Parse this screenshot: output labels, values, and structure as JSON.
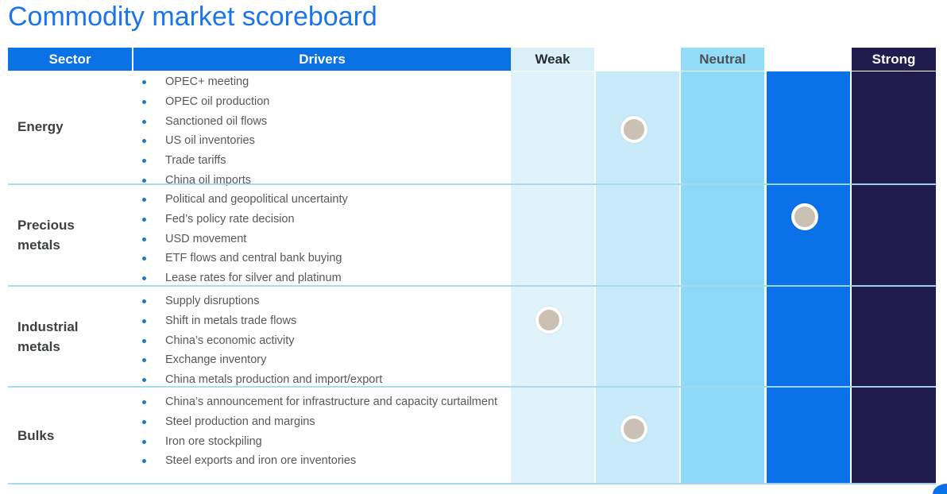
{
  "page": {
    "title": "Commodity market scoreboard"
  },
  "table": {
    "headers": {
      "sector": "Sector",
      "drivers": "Drivers"
    },
    "scale_labels": [
      "Weak",
      "Neutral",
      "Strong"
    ],
    "scale_levels": 5,
    "rows": [
      {
        "sector": "Energy",
        "drivers": [
          "OPEC+ meeting",
          "OPEC oil production",
          "Sanctioned oil flows",
          "US oil inventories",
          "Trade tariffs",
          "China oil imports"
        ],
        "rating": 2
      },
      {
        "sector": "Precious metals",
        "drivers": [
          "Political and geopolitical uncertainty",
          "Fed’s policy rate decision",
          "USD movement",
          "ETF flows and central bank buying",
          "Lease rates for silver and platinum"
        ],
        "rating": 4
      },
      {
        "sector": "Industrial metals",
        "drivers": [
          "Supply disruptions",
          "Shift in metals trade flows",
          "China’s economic activity",
          "Exchange inventory",
          "China metals production and import/export"
        ],
        "rating": 1
      },
      {
        "sector": "Bulks",
        "drivers": [
          "China’s announcement for infrastructure and capacity curtailment",
          "Steel production and margins",
          "Iron ore stockpiling",
          "Steel exports and iron ore inventories"
        ],
        "rating": 2
      }
    ]
  },
  "colors": {
    "title_blue": "#1B75E8",
    "header_blue": "#0B72E6",
    "scale_column_colors": [
      "#E0F2FA",
      "#C9EAF8",
      "#8CDAF7",
      "#0A71E8",
      "#211C4E"
    ],
    "weak_header_bg": "#DBEFF9",
    "neutral_header_bg": "#93DCF7",
    "strong_header_bg": "#211C4E",
    "marker_fill": "#CBC0B4",
    "marker_ring": "#FFFFFF",
    "divider": "#A4D9EE",
    "bullet_blue": "#1F78C8"
  }
}
